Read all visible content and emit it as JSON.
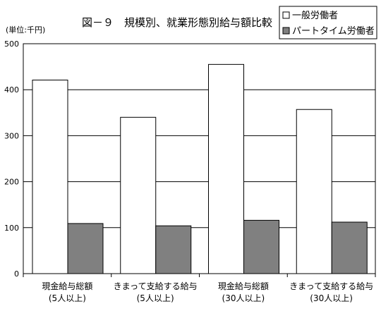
{
  "chart_data": {
    "type": "bar",
    "title": "図－９　規模別、就業形態別給与額比較",
    "unit_label": "(単位:千円)",
    "categories": [
      [
        "現金給与総額",
        "(5人以上)"
      ],
      [
        "きまって支給する給与",
        "(5人以上)"
      ],
      [
        "現金給与総額",
        "(30人以上)"
      ],
      [
        "きまって支給する給与",
        "(30人以上)"
      ]
    ],
    "series": [
      {
        "name": "一般労働者",
        "values": [
          421,
          340,
          455,
          357
        ],
        "color": "#ffffff"
      },
      {
        "name": "パートタイム労働者",
        "values": [
          109,
          104,
          116,
          112
        ],
        "color": "#808080"
      }
    ],
    "ylim": [
      0,
      500
    ],
    "yticks": [
      0,
      100,
      200,
      300,
      400,
      500
    ],
    "grid": true,
    "legend_position": "top-right"
  }
}
